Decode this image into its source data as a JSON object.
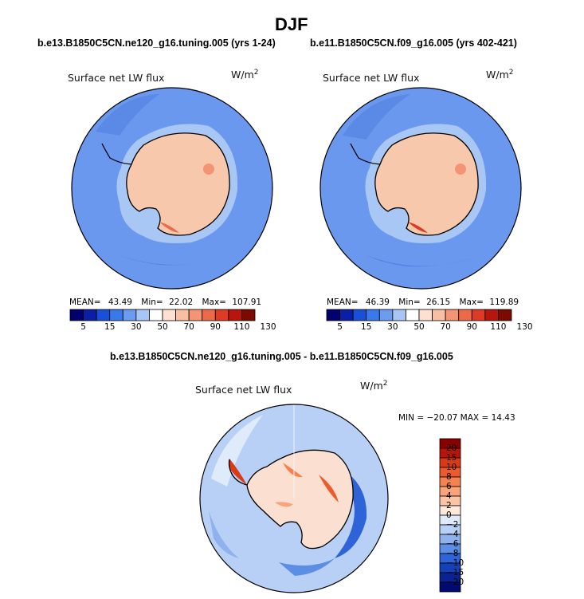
{
  "figure": {
    "season": "DJF",
    "left_case": "b.e13.B1850C5CN.ne120_g16.tuning.005 (yrs 1-24)",
    "right_case": "b.e11.B1850C5CN.f09_g16.005 (yrs 402-421)",
    "diff_case": "b.e13.B1850C5CN.ne120_g16.tuning.005 - b.e11.B1850C5CN.f09_g16.005"
  },
  "panels": {
    "left": {
      "variable": "Surface net LW flux",
      "units": "W/m",
      "units_exp": "2",
      "mean_label": "MEAN=",
      "mean": "43.49",
      "min_label": "Min=",
      "min": "22.02",
      "max_label": "Max=",
      "max": "107.91"
    },
    "right": {
      "variable": "Surface net LW flux",
      "units": "W/m",
      "units_exp": "2",
      "mean_label": "MEAN=",
      "mean": "46.39",
      "min_label": "Min=",
      "min": "26.15",
      "max_label": "Max=",
      "max": "119.89"
    },
    "diff": {
      "variable": "Surface net LW flux",
      "units": "W/m",
      "units_exp": "2",
      "minmax_text": "MIN = −20.07 MAX =  14.43"
    }
  },
  "colorbars": {
    "horizontal": {
      "labels": [
        "5",
        "15",
        "30",
        "50",
        "70",
        "90",
        "110",
        "130"
      ],
      "colors": [
        "#00006e",
        "#0a1fa5",
        "#1a4fd8",
        "#3a79ea",
        "#6b9cf0",
        "#a8c6f5",
        "#ffffff",
        "#fde0cf",
        "#f9bfa2",
        "#f39574",
        "#ec6a4a",
        "#dd3b24",
        "#b8160c",
        "#7a0a02"
      ]
    },
    "vertical": {
      "labels": [
        "20",
        "15",
        "10",
        "8",
        "6",
        "4",
        "2",
        "0",
        "−2",
        "−4",
        "−6",
        "−8",
        "−10",
        "−15",
        "−20"
      ],
      "colors": [
        "#8a0000",
        "#b8140a",
        "#dc3a16",
        "#ef5a2c",
        "#f6834f",
        "#f9a37b",
        "#fcc3a4",
        "#fde8db",
        "#dfeafb",
        "#b9d0f6",
        "#8fb1ee",
        "#5d8ee6",
        "#2f64d8",
        "#1541b8",
        "#0a2392",
        "#000a70"
      ]
    }
  }
}
